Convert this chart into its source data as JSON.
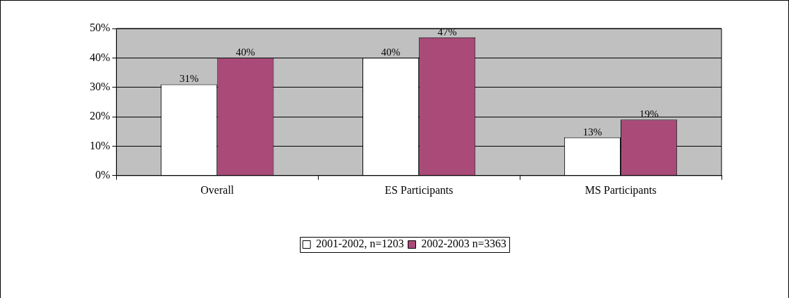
{
  "chart_data": {
    "type": "bar",
    "categories": [
      "Overall",
      "ES Participants",
      "MS Participants"
    ],
    "series": [
      {
        "name": "2001-2002, n=1203",
        "color": "#ffffff",
        "values": [
          31,
          40,
          13
        ],
        "value_labels": [
          "31%",
          "40%",
          "13%"
        ]
      },
      {
        "name": "2002-2003 n=3363",
        "color": "#a94a78",
        "values": [
          40,
          47,
          19
        ],
        "value_labels": [
          "40%",
          "47%",
          "19%"
        ]
      }
    ],
    "ylim": [
      0,
      50
    ],
    "yticks": [
      {
        "value": 0,
        "label": "0%"
      },
      {
        "value": 10,
        "label": "10%"
      },
      {
        "value": 20,
        "label": "20%"
      },
      {
        "value": 30,
        "label": "30%"
      },
      {
        "value": 40,
        "label": "40%"
      },
      {
        "value": 50,
        "label": "50%"
      }
    ],
    "grid": "y",
    "legend": "bottom"
  }
}
